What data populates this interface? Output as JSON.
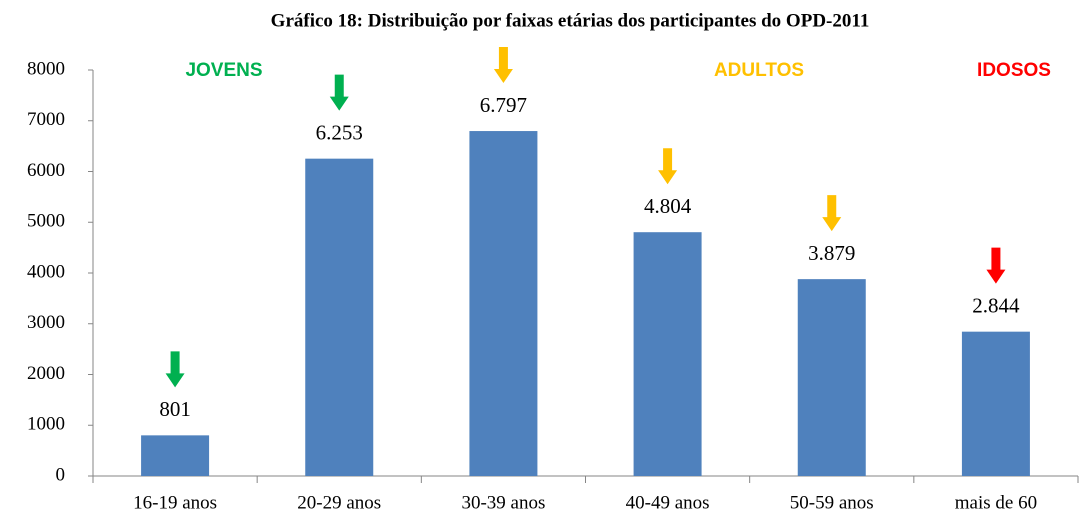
{
  "chart_data": {
    "type": "bar",
    "title": "Gráfico 18: Distribuição por faixas etárias dos participantes do OPD-2011",
    "categories": [
      "16-19 anos",
      "20-29 anos",
      "30-39 anos",
      "40-49 anos",
      "50-59 anos",
      "mais de 60"
    ],
    "values": [
      801,
      6253,
      6797,
      4804,
      3879,
      2844
    ],
    "value_labels": [
      "801",
      "6.253",
      "6.797",
      "4.804",
      "3.879",
      "2.844"
    ],
    "color": "#4f81bd",
    "ylim": [
      0,
      8000
    ],
    "yticks": [
      0,
      1000,
      2000,
      3000,
      4000,
      5000,
      6000,
      7000,
      8000
    ],
    "grid": false,
    "arrow_colors": [
      "#00b050",
      "#00b050",
      "#ffc000",
      "#ffc000",
      "#ffc000",
      "#ff0000"
    ],
    "annotations": [
      {
        "text": "JOVENS",
        "color": "#00b050"
      },
      {
        "text": "ADULTOS",
        "color": "#ffc000"
      },
      {
        "text": "IDOSOS",
        "color": "#ff0000"
      }
    ]
  }
}
